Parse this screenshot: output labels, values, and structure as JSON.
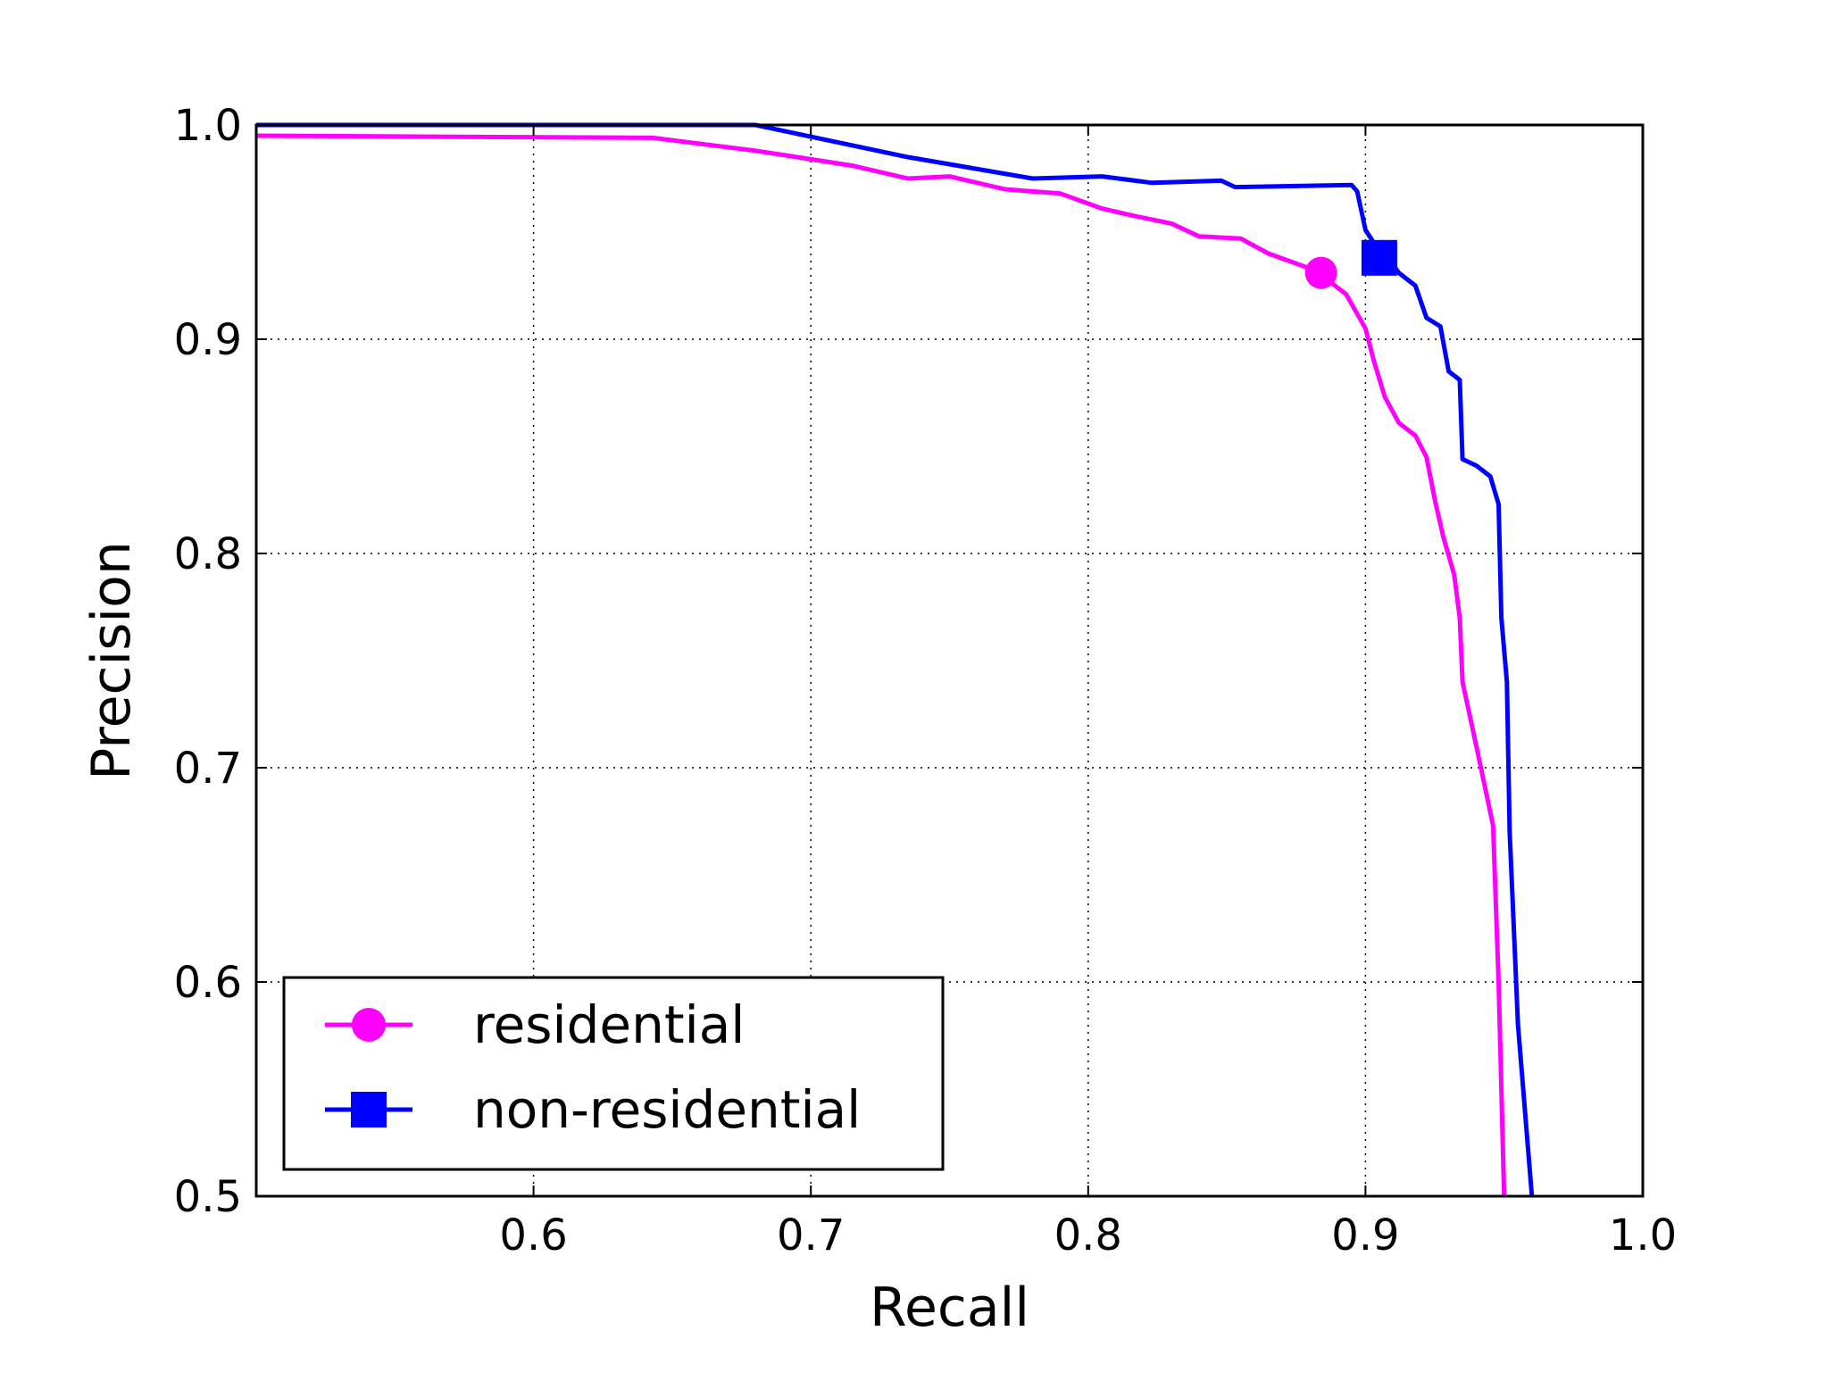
{
  "chart_data": {
    "type": "line",
    "title": "",
    "xlabel": "Recall",
    "ylabel": "Precision",
    "xlim": [
      0.5,
      1.0
    ],
    "ylim": [
      0.5,
      1.0
    ],
    "x_ticks": [
      {
        "value": 0.6,
        "label": "0.6"
      },
      {
        "value": 0.7,
        "label": "0.7"
      },
      {
        "value": 0.8,
        "label": "0.8"
      },
      {
        "value": 0.9,
        "label": "0.9"
      },
      {
        "value": 1.0,
        "label": "1.0"
      }
    ],
    "y_ticks": [
      {
        "value": 0.5,
        "label": "0.5"
      },
      {
        "value": 0.6,
        "label": "0.6"
      },
      {
        "value": 0.7,
        "label": "0.7"
      },
      {
        "value": 0.8,
        "label": "0.8"
      },
      {
        "value": 0.9,
        "label": "0.9"
      },
      {
        "value": 1.0,
        "label": "1.0"
      }
    ],
    "grid": true,
    "grid_style": "dotted",
    "legend_position": "lower-left",
    "series": [
      {
        "name": "residential",
        "color": "#ff00ff",
        "marker": "circle",
        "marker_point": {
          "x": 0.884,
          "y": 0.931
        },
        "points": [
          [
            0.5,
            0.995
          ],
          [
            0.643,
            0.994
          ],
          [
            0.68,
            0.988
          ],
          [
            0.715,
            0.981
          ],
          [
            0.735,
            0.975
          ],
          [
            0.75,
            0.976
          ],
          [
            0.77,
            0.97
          ],
          [
            0.79,
            0.968
          ],
          [
            0.805,
            0.961
          ],
          [
            0.815,
            0.958
          ],
          [
            0.83,
            0.954
          ],
          [
            0.84,
            0.948
          ],
          [
            0.855,
            0.947
          ],
          [
            0.865,
            0.94
          ],
          [
            0.88,
            0.933
          ],
          [
            0.886,
            0.928
          ],
          [
            0.893,
            0.921
          ],
          [
            0.9,
            0.905
          ],
          [
            0.903,
            0.89
          ],
          [
            0.907,
            0.873
          ],
          [
            0.912,
            0.861
          ],
          [
            0.918,
            0.855
          ],
          [
            0.922,
            0.845
          ],
          [
            0.925,
            0.825
          ],
          [
            0.928,
            0.808
          ],
          [
            0.932,
            0.79
          ],
          [
            0.934,
            0.77
          ],
          [
            0.935,
            0.74
          ],
          [
            0.94,
            0.71
          ],
          [
            0.946,
            0.673
          ],
          [
            0.948,
            0.6
          ],
          [
            0.95,
            0.5
          ]
        ]
      },
      {
        "name": "non-residential",
        "color": "#0000ff",
        "marker": "square",
        "marker_point": {
          "x": 0.905,
          "y": 0.938
        },
        "points": [
          [
            0.5,
            1.0
          ],
          [
            0.68,
            1.0
          ],
          [
            0.735,
            0.985
          ],
          [
            0.78,
            0.975
          ],
          [
            0.805,
            0.976
          ],
          [
            0.823,
            0.973
          ],
          [
            0.848,
            0.974
          ],
          [
            0.853,
            0.971
          ],
          [
            0.895,
            0.972
          ],
          [
            0.897,
            0.969
          ],
          [
            0.9,
            0.951
          ],
          [
            0.903,
            0.945
          ],
          [
            0.907,
            0.94
          ],
          [
            0.912,
            0.931
          ],
          [
            0.918,
            0.925
          ],
          [
            0.922,
            0.91
          ],
          [
            0.927,
            0.906
          ],
          [
            0.93,
            0.885
          ],
          [
            0.934,
            0.881
          ],
          [
            0.935,
            0.844
          ],
          [
            0.94,
            0.841
          ],
          [
            0.945,
            0.836
          ],
          [
            0.948,
            0.823
          ],
          [
            0.949,
            0.77
          ],
          [
            0.951,
            0.74
          ],
          [
            0.952,
            0.67
          ],
          [
            0.955,
            0.58
          ],
          [
            0.96,
            0.5
          ]
        ]
      }
    ]
  }
}
